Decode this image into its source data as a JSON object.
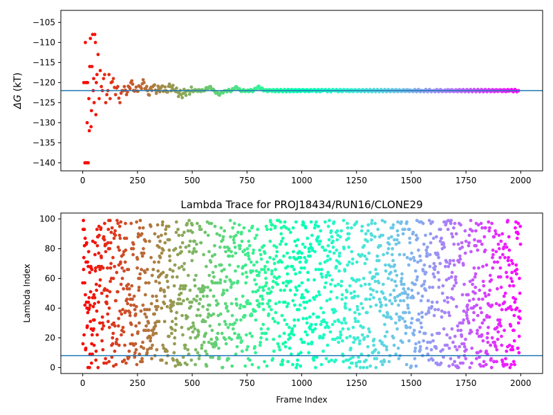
{
  "chart_data": [
    {
      "type": "scatter",
      "title": "",
      "ylabel": "ΔG (kT)",
      "ylabel_symbol": "ΔG",
      "ylabel_unit": " (kT)",
      "xlabel": "",
      "xlim": [
        -100,
        2100
      ],
      "ylim": [
        -142,
        -102
      ],
      "xticks": [
        0,
        250,
        500,
        750,
        1000,
        1250,
        1500,
        1750,
        2000
      ],
      "xtick_labels": [
        "0",
        "250",
        "500",
        "750",
        "1000",
        "1250",
        "1500",
        "1750",
        "2000"
      ],
      "yticks": [
        -140,
        -135,
        -130,
        -125,
        -120,
        -115,
        -110,
        -105
      ],
      "ytick_labels": [
        "−140",
        "−135",
        "−130",
        "−125",
        "−120",
        "−115",
        "−110",
        "−105"
      ],
      "reference_line": -122,
      "reference_line_color": "#1f77b4",
      "colormap": "rainbow (red → violet with frame index)",
      "grid": false,
      "legend": "none",
      "series": [
        {
          "x": [
            5,
            10,
            12,
            15,
            18,
            20,
            22,
            25,
            28,
            30,
            32,
            35,
            38,
            40,
            42,
            45,
            48,
            50,
            52,
            55,
            58,
            60,
            62,
            65,
            70,
            75,
            80,
            85,
            90,
            95,
            100,
            105,
            110,
            115,
            120,
            125,
            130,
            140,
            150,
            160,
            170,
            180,
            190,
            200,
            220,
            240,
            260,
            280,
            300,
            320,
            340,
            360,
            380,
            400,
            420,
            450,
            480,
            500,
            520,
            550,
            580,
            600,
            620,
            650,
            680,
            700,
            720,
            750,
            780,
            800,
            830,
            860,
            900,
            950,
            1000,
            1050,
            1100,
            1150,
            1200,
            1250,
            1300,
            1350,
            1400,
            1450,
            1500,
            1550,
            1600,
            1650,
            1700,
            1750,
            1800,
            1850,
            1900,
            1950,
            1990
          ],
          "y": [
            -120,
            -140,
            -110,
            -120,
            -140,
            -130,
            -120,
            -140,
            -124,
            -132,
            -116,
            -109,
            -131,
            -127,
            -116,
            -108,
            -122,
            -119,
            -125,
            -108,
            -110,
            -128,
            -120,
            -118,
            -113,
            -124,
            -117,
            -121,
            -122,
            -119,
            -118,
            -125,
            -123,
            -122,
            -118,
            -124,
            -120,
            -119,
            -123,
            -121,
            -125,
            -122,
            -121,
            -123,
            -120,
            -122,
            -121,
            -120,
            -123,
            -121,
            -122,
            -121,
            -122,
            -121,
            -122,
            -123,
            -122,
            -122,
            -122,
            -122,
            -121,
            -122,
            -123,
            -122,
            -122,
            -121,
            -122,
            -122,
            -122,
            -121,
            -122,
            -122,
            -122,
            -122,
            -122,
            -122,
            -122,
            -122,
            -122,
            -122,
            -122,
            -122,
            -122,
            -122,
            -122,
            -122,
            -122,
            -122,
            -122,
            -122,
            -122,
            -122,
            -122,
            -122,
            -122
          ]
        }
      ]
    },
    {
      "type": "scatter",
      "title": "Lambda Trace for PROJ18434/RUN16/CLONE29",
      "xlabel": "Frame Index",
      "ylabel": "Lambda Index",
      "xlim": [
        -100,
        2100
      ],
      "ylim": [
        -4,
        104
      ],
      "xticks": [
        0,
        250,
        500,
        750,
        1000,
        1250,
        1500,
        1750,
        2000
      ],
      "xtick_labels": [
        "0",
        "250",
        "500",
        "750",
        "1000",
        "1250",
        "1500",
        "1750",
        "2000"
      ],
      "yticks": [
        0,
        20,
        40,
        60,
        80,
        100
      ],
      "ytick_labels": [
        "0",
        "20",
        "40",
        "60",
        "80",
        "100"
      ],
      "reference_line": 8,
      "reference_line_color": "#1f77b4",
      "colormap": "rainbow (red → violet with frame index)",
      "n_points": 2000,
      "grid": false,
      "legend": "none"
    }
  ]
}
